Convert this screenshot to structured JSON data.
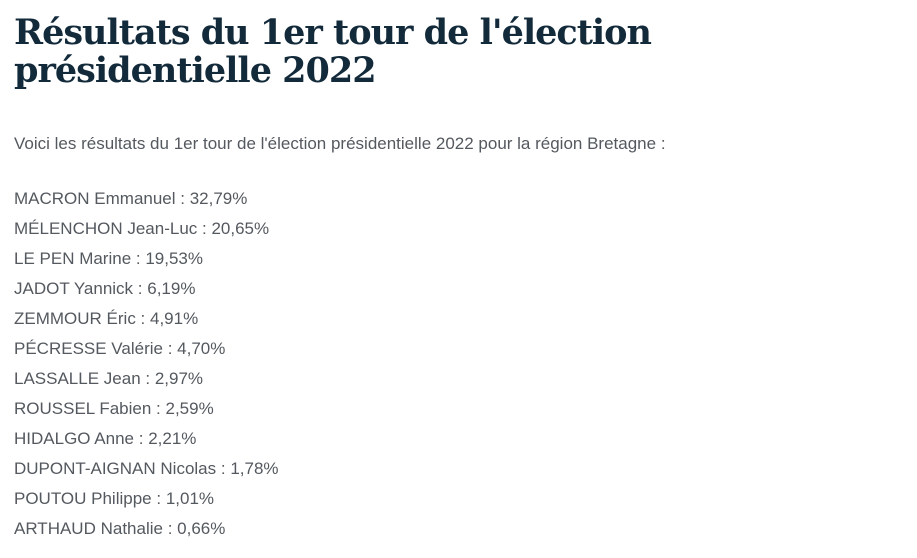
{
  "page": {
    "title": "Résultats du 1er tour de l'élection présidentielle 2022",
    "intro": "Voici les résultats du 1er tour de l'élection présidentielle 2022 pour la région Bretagne :",
    "separator": " : "
  },
  "results": [
    {
      "candidate": "MACRON Emmanuel",
      "score": "32,79%"
    },
    {
      "candidate": "MÉLENCHON Jean-Luc",
      "score": "20,65%"
    },
    {
      "candidate": "LE PEN Marine",
      "score": "19,53%"
    },
    {
      "candidate": "JADOT Yannick",
      "score": "6,19%"
    },
    {
      "candidate": "ZEMMOUR Éric",
      "score": "4,91%"
    },
    {
      "candidate": "PÉCRESSE Valérie",
      "score": "4,70%"
    },
    {
      "candidate": "LASSALLE Jean",
      "score": "2,97%"
    },
    {
      "candidate": "ROUSSEL Fabien",
      "score": "2,59%"
    },
    {
      "candidate": "HIDALGO Anne",
      "score": "2,21%"
    },
    {
      "candidate": "DUPONT-AIGNAN Nicolas",
      "score": "1,78%"
    },
    {
      "candidate": "POUTOU Philippe",
      "score": "1,01%"
    },
    {
      "candidate": "ARTHAUD Nathalie",
      "score": "0,66%"
    }
  ],
  "colors": {
    "title": "#122a3a",
    "body": "#54595f",
    "background": "#ffffff"
  }
}
